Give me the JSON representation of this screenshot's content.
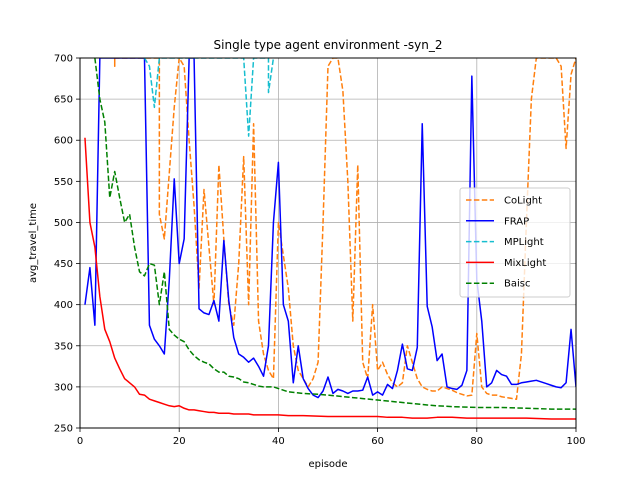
{
  "chart_data": {
    "type": "line",
    "title": "Single type agent environment -syn_2",
    "xlabel": "episode",
    "ylabel": "avg_travel_time",
    "xlim": [
      0,
      100
    ],
    "ylim": [
      250,
      700
    ],
    "xticks": [
      0,
      20,
      40,
      60,
      80,
      100
    ],
    "yticks": [
      250,
      300,
      350,
      400,
      450,
      500,
      550,
      600,
      650,
      700
    ],
    "grid": true,
    "legend": {
      "position": "center-right"
    },
    "series": [
      {
        "name": "CoLight",
        "color": "#ff7f0e",
        "dash": "dashed",
        "points": [
          [
            7,
            700
          ],
          [
            7,
            690
          ],
          [
            7,
            700
          ],
          [
            16,
            700
          ],
          [
            16,
            510
          ],
          [
            17,
            480
          ],
          [
            18,
            560
          ],
          [
            19,
            640
          ],
          [
            20,
            700
          ],
          [
            21,
            690
          ],
          [
            22,
            600
          ],
          [
            23,
            520
          ],
          [
            24,
            420
          ],
          [
            25,
            540
          ],
          [
            26,
            470
          ],
          [
            27,
            400
          ],
          [
            28,
            570
          ],
          [
            29,
            480
          ],
          [
            30,
            400
          ],
          [
            31,
            375
          ],
          [
            32,
            450
          ],
          [
            33,
            580
          ],
          [
            34,
            400
          ],
          [
            35,
            620
          ],
          [
            36,
            380
          ],
          [
            37,
            340
          ],
          [
            38,
            320
          ],
          [
            39,
            310
          ],
          [
            40,
            500
          ],
          [
            41,
            460
          ],
          [
            42,
            420
          ],
          [
            43,
            350
          ],
          [
            44,
            320
          ],
          [
            45,
            310
          ],
          [
            46,
            300
          ],
          [
            47,
            310
          ],
          [
            48,
            330
          ],
          [
            49,
            500
          ],
          [
            50,
            690
          ],
          [
            51,
            700
          ],
          [
            52,
            700
          ],
          [
            53,
            660
          ],
          [
            54,
            550
          ],
          [
            55,
            380
          ],
          [
            56,
            570
          ],
          [
            57,
            330
          ],
          [
            58,
            310
          ],
          [
            59,
            400
          ],
          [
            60,
            320
          ],
          [
            61,
            330
          ],
          [
            62,
            315
          ],
          [
            63,
            305
          ],
          [
            64,
            300
          ],
          [
            65,
            305
          ],
          [
            66,
            350
          ],
          [
            67,
            330
          ],
          [
            68,
            310
          ],
          [
            69,
            300
          ],
          [
            70,
            297
          ],
          [
            71,
            295
          ],
          [
            72,
            295
          ],
          [
            73,
            300
          ],
          [
            74,
            298
          ],
          [
            75,
            296
          ],
          [
            76,
            293
          ],
          [
            77,
            291
          ],
          [
            78,
            289
          ],
          [
            79,
            290
          ],
          [
            80,
            365
          ],
          [
            81,
            300
          ],
          [
            82,
            292
          ],
          [
            83,
            290
          ],
          [
            84,
            290
          ],
          [
            85,
            288
          ],
          [
            86,
            287
          ],
          [
            87,
            286
          ],
          [
            88,
            285
          ],
          [
            89,
            340
          ],
          [
            90,
            500
          ],
          [
            91,
            650
          ],
          [
            92,
            700
          ],
          [
            95,
            700
          ],
          [
            96,
            700
          ],
          [
            97,
            690
          ],
          [
            98,
            590
          ],
          [
            99,
            680
          ],
          [
            100,
            700
          ]
        ]
      },
      {
        "name": "FRAP",
        "color": "#0000ff",
        "dash": "solid",
        "points": [
          [
            1,
            400
          ],
          [
            2,
            445
          ],
          [
            3,
            375
          ],
          [
            4,
            700
          ],
          [
            13,
            700
          ],
          [
            14,
            375
          ],
          [
            15,
            358
          ],
          [
            16,
            350
          ],
          [
            17,
            340
          ],
          [
            18,
            430
          ],
          [
            19,
            553
          ],
          [
            20,
            450
          ],
          [
            21,
            480
          ],
          [
            22,
            700
          ],
          [
            23,
            700
          ],
          [
            24,
            395
          ],
          [
            25,
            390
          ],
          [
            26,
            388
          ],
          [
            27,
            405
          ],
          [
            28,
            380
          ],
          [
            29,
            478
          ],
          [
            30,
            405
          ],
          [
            31,
            360
          ],
          [
            32,
            340
          ],
          [
            33,
            336
          ],
          [
            34,
            330
          ],
          [
            35,
            335
          ],
          [
            36,
            325
          ],
          [
            37,
            313
          ],
          [
            38,
            350
          ],
          [
            39,
            500
          ],
          [
            40,
            573
          ],
          [
            41,
            400
          ],
          [
            42,
            380
          ],
          [
            43,
            305
          ],
          [
            44,
            350
          ],
          [
            45,
            310
          ],
          [
            46,
            298
          ],
          [
            47,
            290
          ],
          [
            48,
            287
          ],
          [
            49,
            295
          ],
          [
            50,
            312
          ],
          [
            51,
            292
          ],
          [
            52,
            297
          ],
          [
            53,
            295
          ],
          [
            54,
            292
          ],
          [
            55,
            295
          ],
          [
            56,
            295
          ],
          [
            57,
            296
          ],
          [
            58,
            312
          ],
          [
            59,
            290
          ],
          [
            60,
            294
          ],
          [
            61,
            290
          ],
          [
            62,
            303
          ],
          [
            63,
            298
          ],
          [
            64,
            320
          ],
          [
            65,
            352
          ],
          [
            66,
            322
          ],
          [
            67,
            320
          ],
          [
            68,
            348
          ],
          [
            69,
            620
          ],
          [
            70,
            398
          ],
          [
            71,
            373
          ],
          [
            72,
            332
          ],
          [
            73,
            340
          ],
          [
            74,
            300
          ],
          [
            75,
            298
          ],
          [
            76,
            297
          ],
          [
            77,
            302
          ],
          [
            78,
            320
          ],
          [
            79,
            678
          ],
          [
            80,
            430
          ],
          [
            81,
            380
          ],
          [
            82,
            300
          ],
          [
            83,
            305
          ],
          [
            84,
            320
          ],
          [
            85,
            315
          ],
          [
            86,
            313
          ],
          [
            87,
            303
          ],
          [
            88,
            303
          ],
          [
            89,
            305
          ],
          [
            90,
            306
          ],
          [
            91,
            307
          ],
          [
            92,
            308
          ],
          [
            93,
            306
          ],
          [
            94,
            304
          ],
          [
            95,
            302
          ],
          [
            96,
            300
          ],
          [
            97,
            299
          ],
          [
            98,
            305
          ],
          [
            99,
            370
          ],
          [
            100,
            300
          ]
        ]
      },
      {
        "name": "MPLight",
        "color": "#17becf",
        "dash": "dashed",
        "points": [
          [
            13,
            700
          ],
          [
            14,
            690
          ],
          [
            15,
            640
          ],
          [
            16,
            700
          ],
          [
            33,
            700
          ],
          [
            34,
            605
          ],
          [
            35,
            700
          ],
          [
            38,
            700
          ],
          [
            38,
            658
          ],
          [
            39,
            700
          ]
        ]
      },
      {
        "name": "MixLight",
        "color": "#ff0000",
        "dash": "solid",
        "points": [
          [
            1,
            603
          ],
          [
            2,
            500
          ],
          [
            3,
            470
          ],
          [
            4,
            410
          ],
          [
            5,
            370
          ],
          [
            6,
            355
          ],
          [
            7,
            335
          ],
          [
            8,
            322
          ],
          [
            9,
            310
          ],
          [
            10,
            305
          ],
          [
            11,
            300
          ],
          [
            12,
            291
          ],
          [
            13,
            290
          ],
          [
            14,
            285
          ],
          [
            15,
            283
          ],
          [
            16,
            281
          ],
          [
            17,
            279
          ],
          [
            18,
            277
          ],
          [
            19,
            276
          ],
          [
            20,
            277
          ],
          [
            21,
            274
          ],
          [
            22,
            272
          ],
          [
            23,
            272
          ],
          [
            24,
            271
          ],
          [
            25,
            270
          ],
          [
            26,
            269
          ],
          [
            27,
            269
          ],
          [
            28,
            268
          ],
          [
            29,
            268
          ],
          [
            30,
            268
          ],
          [
            31,
            267
          ],
          [
            32,
            267
          ],
          [
            33,
            267
          ],
          [
            34,
            267
          ],
          [
            35,
            266
          ],
          [
            36,
            266
          ],
          [
            37,
            266
          ],
          [
            38,
            266
          ],
          [
            39,
            266
          ],
          [
            40,
            266
          ],
          [
            42,
            265
          ],
          [
            45,
            265
          ],
          [
            50,
            264
          ],
          [
            55,
            264
          ],
          [
            60,
            264
          ],
          [
            62,
            263
          ],
          [
            65,
            263
          ],
          [
            67,
            262
          ],
          [
            70,
            262
          ],
          [
            72,
            263
          ],
          [
            75,
            263
          ],
          [
            78,
            262
          ],
          [
            80,
            262
          ],
          [
            85,
            262
          ],
          [
            90,
            262
          ],
          [
            95,
            261
          ],
          [
            100,
            261
          ]
        ]
      },
      {
        "name": "Baisc",
        "color": "#008000",
        "dash": "dashed",
        "points": [
          [
            3,
            700
          ],
          [
            4,
            650
          ],
          [
            5,
            622
          ],
          [
            6,
            530
          ],
          [
            7,
            562
          ],
          [
            8,
            530
          ],
          [
            9,
            500
          ],
          [
            10,
            510
          ],
          [
            11,
            470
          ],
          [
            12,
            440
          ],
          [
            13,
            435
          ],
          [
            14,
            450
          ],
          [
            15,
            448
          ],
          [
            16,
            400
          ],
          [
            17,
            440
          ],
          [
            18,
            370
          ],
          [
            19,
            363
          ],
          [
            20,
            358
          ],
          [
            21,
            355
          ],
          [
            22,
            345
          ],
          [
            23,
            338
          ],
          [
            24,
            333
          ],
          [
            25,
            330
          ],
          [
            26,
            328
          ],
          [
            27,
            322
          ],
          [
            28,
            318
          ],
          [
            29,
            318
          ],
          [
            30,
            313
          ],
          [
            31,
            312
          ],
          [
            32,
            310
          ],
          [
            33,
            306
          ],
          [
            34,
            305
          ],
          [
            35,
            303
          ],
          [
            36,
            301
          ],
          [
            37,
            300
          ],
          [
            38,
            300
          ],
          [
            39,
            300
          ],
          [
            40,
            298
          ],
          [
            42,
            294
          ],
          [
            45,
            292
          ],
          [
            48,
            291
          ],
          [
            50,
            290
          ],
          [
            55,
            287
          ],
          [
            60,
            284
          ],
          [
            65,
            281
          ],
          [
            70,
            278
          ],
          [
            72,
            277
          ],
          [
            75,
            276
          ],
          [
            80,
            275
          ],
          [
            85,
            275
          ],
          [
            90,
            274
          ],
          [
            95,
            273
          ],
          [
            100,
            273
          ]
        ]
      }
    ]
  }
}
